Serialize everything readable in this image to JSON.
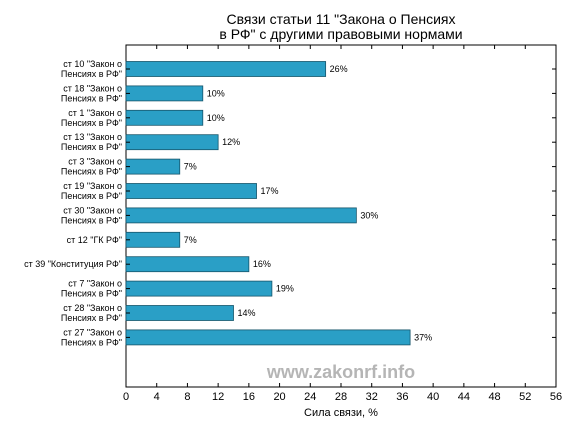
{
  "chart_data": {
    "type": "bar",
    "orientation": "horizontal",
    "title_lines": [
      "Связи статьи 11 \"Закона о Пенсиях",
      "в РФ\" с другими правовыми нормами"
    ],
    "xlabel": "Сила связи, %",
    "ylabel": "",
    "xlim": [
      0,
      56
    ],
    "xticks": [
      0,
      4,
      8,
      12,
      16,
      20,
      24,
      28,
      32,
      36,
      40,
      44,
      48,
      52,
      56
    ],
    "categories": [
      [
        "ст 10 \"Закон о",
        "Пенсиях в РФ\""
      ],
      [
        "ст 18 \"Закон о",
        "Пенсиях в РФ\""
      ],
      [
        "ст 1 \"Закон о",
        "Пенсиях в РФ\""
      ],
      [
        "ст 13 \"Закон о",
        "Пенсиях в РФ\""
      ],
      [
        "ст 3 \"Закон о",
        "Пенсиях в РФ\""
      ],
      [
        "ст 19 \"Закон о",
        "Пенсиях в РФ\""
      ],
      [
        "ст 30 \"Закон о",
        "Пенсиях в РФ\""
      ],
      [
        "ст 12 \"ГК РФ\""
      ],
      [
        "ст 39 \"Конституция РФ\""
      ],
      [
        "ст 7 \"Закон о",
        "Пенсиях в РФ\""
      ],
      [
        "ст 28 \"Закон о",
        "Пенсиях в РФ\""
      ],
      [
        "ст 27 \"Закон о",
        "Пенсиях в РФ\""
      ]
    ],
    "values": [
      26,
      10,
      10,
      12,
      7,
      17,
      30,
      7,
      16,
      19,
      14,
      37
    ],
    "value_labels": [
      "26%",
      "10%",
      "10%",
      "12%",
      "7%",
      "17%",
      "30%",
      "7%",
      "16%",
      "19%",
      "14%",
      "37%"
    ],
    "bar_color": "#2a9fc6",
    "bar_edge_color": "#16556b",
    "grid": false,
    "legend": "none"
  },
  "watermark": "www.zakonrf.info"
}
